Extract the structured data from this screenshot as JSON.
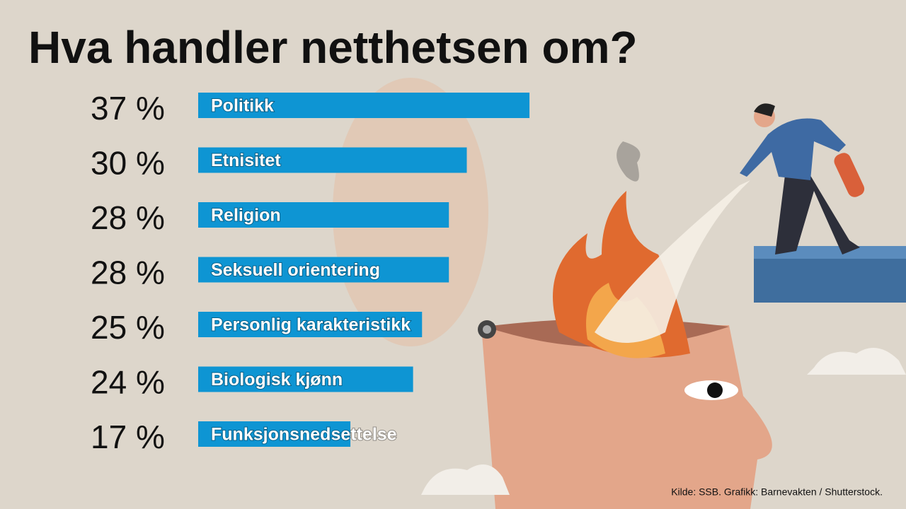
{
  "chart_data": {
    "type": "bar",
    "orientation": "horizontal",
    "title": "Hva handler netthetsen om?",
    "categories": [
      "Politikk",
      "Etnisitet",
      "Religion",
      "Seksuell orientering",
      "Personlig karakteristikk",
      "Biologisk kjønn",
      "Funksjonsnedsettelse"
    ],
    "values": [
      37,
      30,
      28,
      28,
      25,
      24,
      17
    ],
    "value_labels": [
      "37 %",
      "30 %",
      "28 %",
      "28 %",
      "25 %",
      "24 %",
      "17 %"
    ],
    "color": "#0e95d3",
    "source": "Kilde: SSB. Grafikk: Barnevakten / Shutterstock."
  }
}
